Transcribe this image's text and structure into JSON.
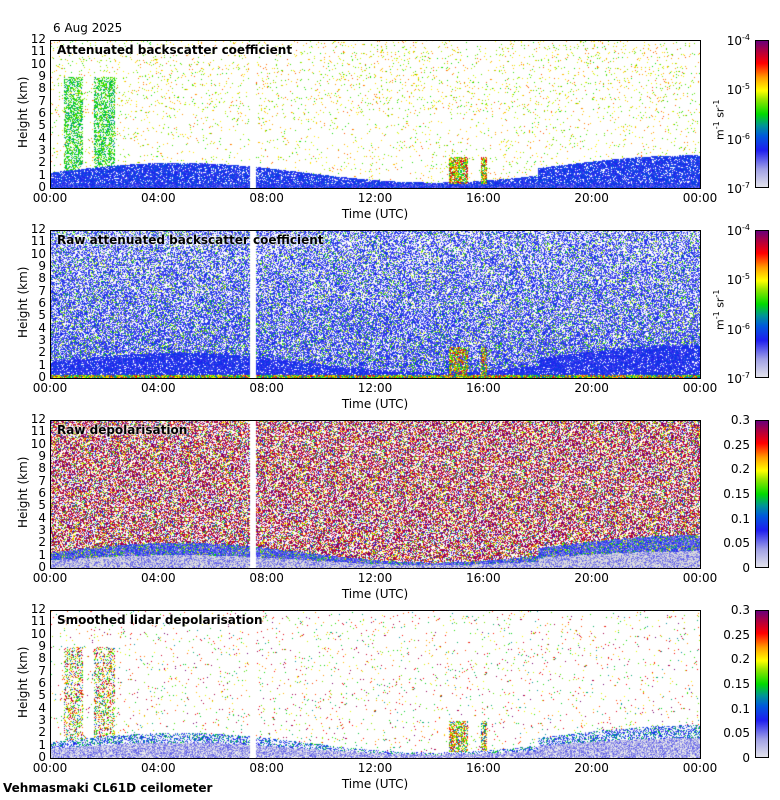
{
  "date": "6 Aug 2025",
  "footer": "Vehmasmaki CL61D ceilometer",
  "chart_data": [
    {
      "type": "heatmap",
      "title": "Attenuated backscatter coefficient",
      "xlabel": "Time (UTC)",
      "ylabel": "Height (km)",
      "ylim": [
        0,
        12
      ],
      "yticks": [
        "0",
        "1",
        "2",
        "3",
        "4",
        "5",
        "6",
        "7",
        "8",
        "9",
        "10",
        "11",
        "12"
      ],
      "xticks": [
        "00:00",
        "04:00",
        "08:00",
        "12:00",
        "16:00",
        "20:00",
        "00:00"
      ],
      "colorbar": {
        "scale": "log",
        "range": [
          1e-07,
          0.0001
        ],
        "ticks": [
          "10",
          "10",
          "10",
          "10"
        ],
        "exponents": [
          "-7",
          "-6",
          "-5",
          "-4"
        ],
        "unit": "m",
        "unit_exp": "-1",
        "unit2": "sr",
        "unit2_exp": "-1"
      },
      "mode": "att"
    },
    {
      "type": "heatmap",
      "title": "Raw attenuated backscatter coefficient",
      "xlabel": "Time (UTC)",
      "ylabel": "Height (km)",
      "ylim": [
        0,
        12
      ],
      "yticks": [
        "0",
        "1",
        "2",
        "3",
        "4",
        "5",
        "6",
        "7",
        "8",
        "9",
        "10",
        "11",
        "12"
      ],
      "xticks": [
        "00:00",
        "04:00",
        "08:00",
        "12:00",
        "16:00",
        "20:00",
        "00:00"
      ],
      "colorbar": {
        "scale": "log",
        "range": [
          1e-07,
          0.0001
        ],
        "ticks": [
          "10",
          "10",
          "10",
          "10"
        ],
        "exponents": [
          "-7",
          "-6",
          "-5",
          "-4"
        ],
        "unit": "m",
        "unit_exp": "-1",
        "unit2": "sr",
        "unit2_exp": "-1"
      },
      "mode": "raw"
    },
    {
      "type": "heatmap",
      "title": "Raw depolarisation",
      "xlabel": "Time (UTC)",
      "ylabel": "Height (km)",
      "ylim": [
        0,
        12
      ],
      "yticks": [
        "0",
        "1",
        "2",
        "3",
        "4",
        "5",
        "6",
        "7",
        "8",
        "9",
        "10",
        "11",
        "12"
      ],
      "xticks": [
        "00:00",
        "04:00",
        "08:00",
        "12:00",
        "16:00",
        "20:00",
        "00:00"
      ],
      "colorbar": {
        "scale": "linear",
        "range": [
          0,
          0.3
        ],
        "ticks": [
          "0",
          "0.05",
          "0.1",
          "0.15",
          "0.2",
          "0.25",
          "0.3"
        ]
      },
      "mode": "rawdep"
    },
    {
      "type": "heatmap",
      "title": "Smoothed lidar depolarisation",
      "xlabel": "Time (UTC)",
      "ylabel": "Height (km)",
      "ylim": [
        0,
        12
      ],
      "yticks": [
        "0",
        "1",
        "2",
        "3",
        "4",
        "5",
        "6",
        "7",
        "8",
        "9",
        "10",
        "11",
        "12"
      ],
      "xticks": [
        "00:00",
        "04:00",
        "08:00",
        "12:00",
        "16:00",
        "20:00",
        "00:00"
      ],
      "colorbar": {
        "scale": "linear",
        "range": [
          0,
          0.3
        ],
        "ticks": [
          "0",
          "0.05",
          "0.1",
          "0.15",
          "0.2",
          "0.25",
          "0.3"
        ]
      },
      "mode": "smdep"
    }
  ]
}
